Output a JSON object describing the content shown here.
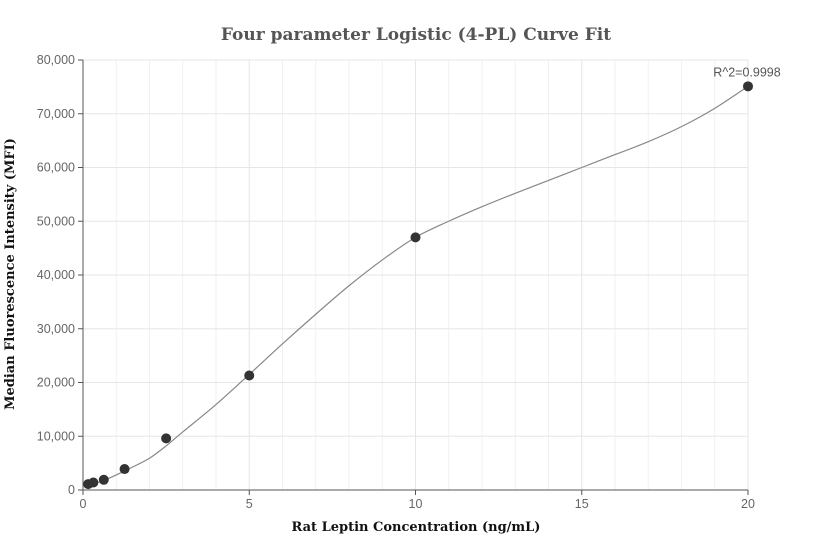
{
  "chart_data": {
    "type": "scatter",
    "title": "Four parameter Logistic (4-PL) Curve Fit",
    "xlabel": "Rat Leptin Concentration (ng/mL)",
    "ylabel": "Median Fluorescence Intensity (MFI)",
    "xlim": [
      0,
      20
    ],
    "ylim": [
      0,
      80000
    ],
    "x_ticks": [
      0,
      5,
      10,
      15,
      20
    ],
    "x_tick_labels": [
      "0",
      "5",
      "10",
      "15",
      "20"
    ],
    "y_ticks": [
      0,
      10000,
      20000,
      30000,
      40000,
      50000,
      60000,
      70000,
      80000
    ],
    "y_tick_labels": [
      "0",
      "10,000",
      "20,000",
      "30,000",
      "40,000",
      "50,000",
      "60,000",
      "70,000",
      "80,000"
    ],
    "grid": true,
    "series": [
      {
        "points": [
          {
            "x": 0.156,
            "y": 1100
          },
          {
            "x": 0.3125,
            "y": 1400
          },
          {
            "x": 0.625,
            "y": 1900
          },
          {
            "x": 1.25,
            "y": 3900
          },
          {
            "x": 2.5,
            "y": 9600
          },
          {
            "x": 5,
            "y": 21300
          },
          {
            "x": 10,
            "y": 47000
          },
          {
            "x": 20,
            "y": 75100
          }
        ]
      }
    ],
    "fit_curve": [
      [
        0.1,
        1000
      ],
      [
        0.5,
        1500
      ],
      [
        1,
        2800
      ],
      [
        1.5,
        4300
      ],
      [
        2,
        5900
      ],
      [
        2.5,
        8200
      ],
      [
        3,
        10800
      ],
      [
        4,
        15900
      ],
      [
        5,
        21500
      ],
      [
        6,
        27200
      ],
      [
        7,
        32700
      ],
      [
        8,
        38000
      ],
      [
        9,
        42800
      ],
      [
        10,
        47000
      ],
      [
        11,
        50000
      ],
      [
        12,
        52700
      ],
      [
        13,
        55200
      ],
      [
        14,
        57600
      ],
      [
        15,
        60000
      ],
      [
        16,
        62400
      ],
      [
        17,
        64800
      ],
      [
        18,
        67600
      ],
      [
        19,
        71000
      ],
      [
        20,
        75100
      ]
    ],
    "annotation": "R^2=0.9998"
  }
}
